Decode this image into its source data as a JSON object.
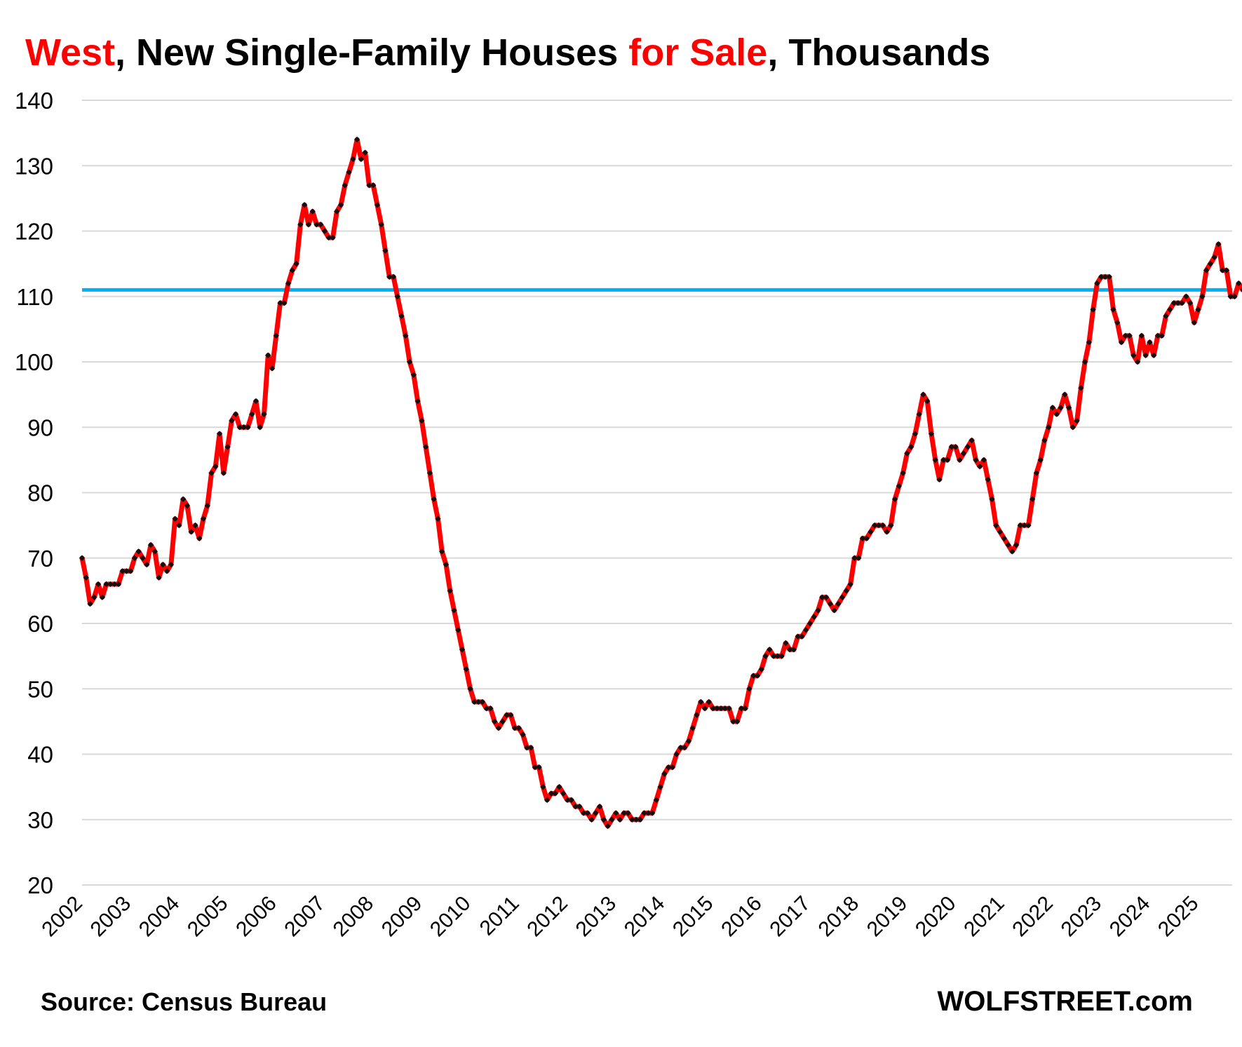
{
  "title": {
    "part1": "West",
    "part2": ", New Single-Family Houses ",
    "part3": "for Sale",
    "part4": ", Thousands"
  },
  "source": "Source: Census Bureau",
  "brand": "WOLFSTREET.com",
  "colors": {
    "series": "#ff0000",
    "markers": "#111111",
    "reference_line": "#00b0f0",
    "grid": "#d9d9d9",
    "title_accent": "#ff0000"
  },
  "chart_data": {
    "type": "line",
    "title": "West, New Single-Family Houses for Sale, Thousands",
    "xlabel": "",
    "ylabel": "",
    "ylim": [
      20,
      140
    ],
    "yticks": [
      20,
      30,
      40,
      50,
      60,
      70,
      80,
      90,
      100,
      110,
      120,
      130,
      140
    ],
    "x_tick_labels": [
      "2002",
      "2003",
      "2004",
      "2005",
      "2006",
      "2007",
      "2008",
      "2009",
      "2010",
      "2011",
      "2012",
      "2013",
      "2014",
      "2015",
      "2016",
      "2017",
      "2018",
      "2019",
      "2020",
      "2021",
      "2022",
      "2023",
      "2024",
      "2025"
    ],
    "grid": true,
    "legend": "none",
    "start": "2002-01",
    "frequency": "monthly",
    "reference_line": {
      "value": 111,
      "color": "#00b0f0"
    },
    "series": [
      {
        "values": [
          70,
          67,
          63,
          64,
          66,
          64,
          66,
          66,
          66,
          66,
          68,
          68,
          68,
          70,
          71,
          70,
          69,
          72,
          71,
          67,
          69,
          68,
          69,
          76,
          75,
          79,
          78,
          74,
          75,
          73,
          76,
          78,
          83,
          84,
          89,
          83,
          87,
          91,
          92,
          90,
          90,
          90,
          92,
          94,
          90,
          92,
          101,
          99,
          104,
          109,
          109,
          112,
          114,
          115,
          121,
          124,
          121,
          123,
          121,
          121,
          120,
          119,
          119,
          123,
          124,
          127,
          129,
          131,
          134,
          131,
          132,
          127,
          127,
          124,
          121,
          117,
          113,
          113,
          110,
          107,
          104,
          100,
          98,
          94,
          91,
          87,
          83,
          79,
          76,
          71,
          69,
          65,
          62,
          59,
          56,
          53,
          50,
          48,
          48,
          48,
          47,
          47,
          45,
          44,
          45,
          46,
          46,
          44,
          44,
          43,
          41,
          41,
          38,
          38,
          35,
          33,
          34,
          34,
          35,
          34,
          33,
          33,
          32,
          32,
          31,
          31,
          30,
          31,
          32,
          30,
          29,
          30,
          31,
          30,
          31,
          31,
          30,
          30,
          30,
          31,
          31,
          31,
          33,
          35,
          37,
          38,
          38,
          40,
          41,
          41,
          42,
          44,
          46,
          48,
          47,
          48,
          47,
          47,
          47,
          47,
          47,
          45,
          45,
          47,
          47,
          50,
          52,
          52,
          53,
          55,
          56,
          55,
          55,
          55,
          57,
          56,
          56,
          58,
          58,
          59,
          60,
          61,
          62,
          64,
          64,
          63,
          62,
          63,
          64,
          65,
          66,
          70,
          70,
          73,
          73,
          74,
          75,
          75,
          75,
          74,
          75,
          79,
          81,
          83,
          86,
          87,
          89,
          92,
          95,
          94,
          89,
          85,
          82,
          85,
          85,
          87,
          87,
          85,
          86,
          87,
          88,
          85,
          84,
          85,
          82,
          79,
          75,
          74,
          73,
          72,
          71,
          72,
          75,
          75,
          75,
          79,
          83,
          85,
          88,
          90,
          93,
          92,
          93,
          95,
          93,
          90,
          91,
          96,
          100,
          103,
          108,
          112,
          113,
          113,
          113,
          108,
          106,
          103,
          104,
          104,
          101,
          100,
          104,
          101,
          103,
          101,
          104,
          104,
          107,
          108,
          109,
          109,
          109,
          110,
          109,
          106,
          108,
          110,
          114,
          115,
          116,
          118,
          114,
          114,
          110,
          110,
          112,
          111
        ]
      }
    ]
  }
}
